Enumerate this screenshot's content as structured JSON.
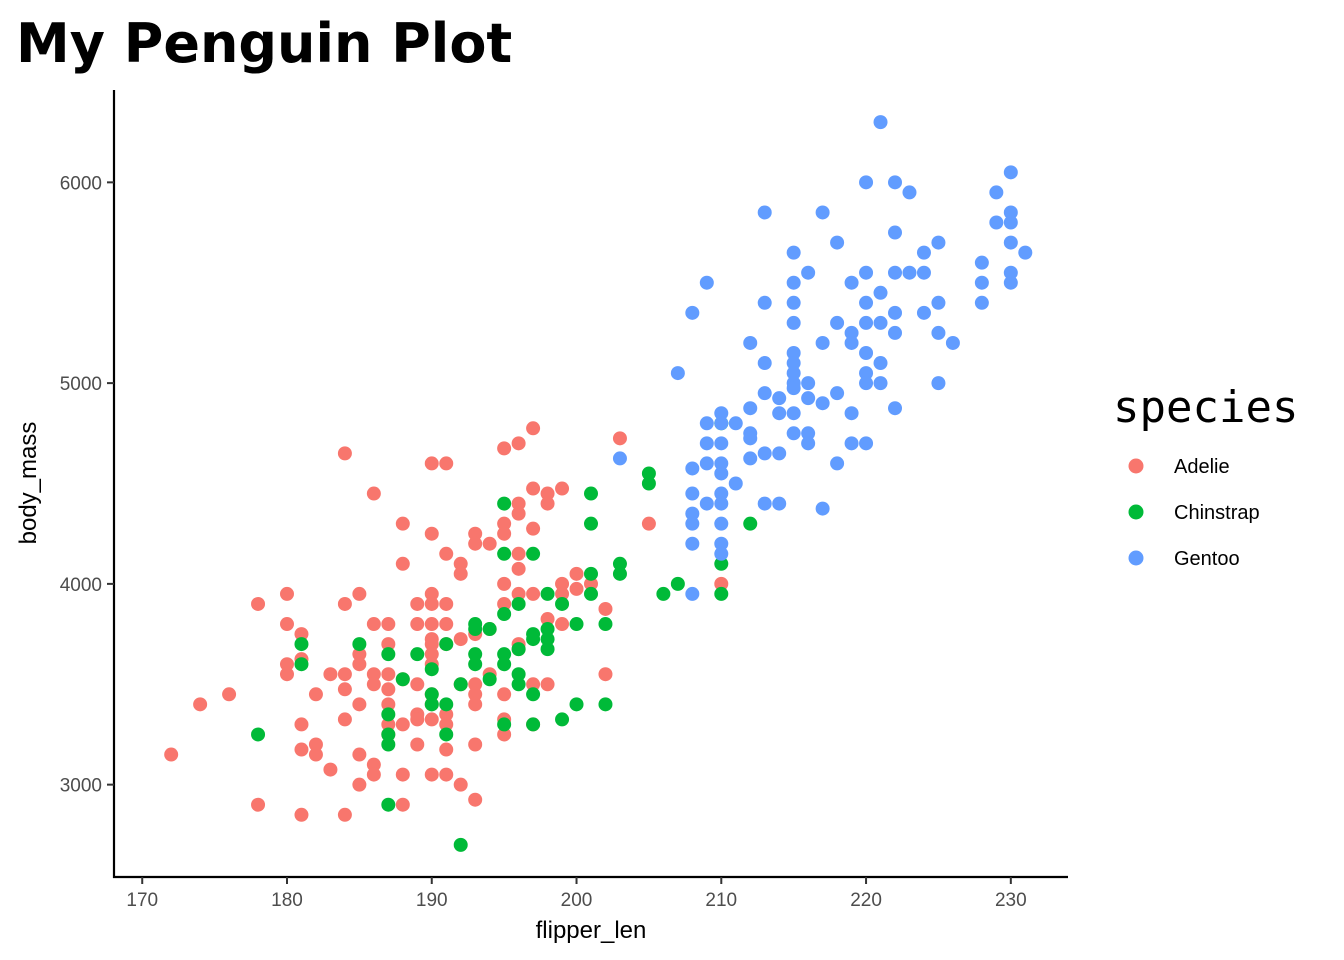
{
  "chart_data": {
    "type": "scatter",
    "title": "My Penguin Plot",
    "xlabel": "flipper_len",
    "ylabel": "body_mass",
    "xlim": [
      168.05,
      233.95
    ],
    "ylim": [
      2540,
      6460
    ],
    "xticks": [
      170,
      180,
      190,
      200,
      210,
      220,
      230
    ],
    "yticks": [
      3000,
      4000,
      5000,
      6000
    ],
    "grid": false,
    "legend": {
      "title": "species",
      "position": "right"
    },
    "series": [
      {
        "name": "Adelie",
        "color": "#F8766D",
        "points": [
          [
            172,
            3150
          ],
          [
            174,
            3400
          ],
          [
            176,
            3450
          ],
          [
            178,
            3900
          ],
          [
            178,
            2900
          ],
          [
            180,
            3950
          ],
          [
            180,
            3800
          ],
          [
            180,
            3600
          ],
          [
            180,
            3550
          ],
          [
            181,
            3750
          ],
          [
            181,
            3625
          ],
          [
            181,
            3300
          ],
          [
            181,
            3175
          ],
          [
            181,
            2850
          ],
          [
            182,
            3450
          ],
          [
            182,
            3200
          ],
          [
            182,
            3150
          ],
          [
            183,
            3550
          ],
          [
            183,
            3075
          ],
          [
            184,
            4650
          ],
          [
            184,
            3900
          ],
          [
            184,
            3550
          ],
          [
            184,
            3475
          ],
          [
            184,
            3325
          ],
          [
            184,
            2850
          ],
          [
            185,
            3950
          ],
          [
            185,
            3650
          ],
          [
            185,
            3600
          ],
          [
            185,
            3400
          ],
          [
            185,
            3150
          ],
          [
            185,
            3000
          ],
          [
            186,
            4450
          ],
          [
            186,
            3800
          ],
          [
            186,
            3550
          ],
          [
            186,
            3500
          ],
          [
            186,
            3100
          ],
          [
            186,
            3050
          ],
          [
            187,
            3800
          ],
          [
            187,
            3700
          ],
          [
            187,
            3550
          ],
          [
            187,
            3475
          ],
          [
            187,
            3400
          ],
          [
            187,
            3300
          ],
          [
            187,
            3250
          ],
          [
            188,
            4300
          ],
          [
            188,
            4100
          ],
          [
            188,
            3525
          ],
          [
            188,
            3300
          ],
          [
            188,
            3050
          ],
          [
            188,
            2900
          ],
          [
            189,
            3900
          ],
          [
            189,
            3800
          ],
          [
            189,
            3500
          ],
          [
            189,
            3350
          ],
          [
            189,
            3325
          ],
          [
            189,
            3200
          ],
          [
            190,
            4600
          ],
          [
            190,
            4250
          ],
          [
            190,
            3950
          ],
          [
            190,
            3900
          ],
          [
            190,
            3800
          ],
          [
            190,
            3725
          ],
          [
            190,
            3700
          ],
          [
            190,
            3650
          ],
          [
            190,
            3600
          ],
          [
            190,
            3450
          ],
          [
            190,
            3400
          ],
          [
            190,
            3325
          ],
          [
            190,
            3050
          ],
          [
            191,
            4600
          ],
          [
            191,
            4150
          ],
          [
            191,
            3900
          ],
          [
            191,
            3800
          ],
          [
            191,
            3700
          ],
          [
            191,
            3350
          ],
          [
            191,
            3300
          ],
          [
            191,
            3175
          ],
          [
            191,
            3050
          ],
          [
            192,
            4100
          ],
          [
            192,
            4050
          ],
          [
            192,
            3725
          ],
          [
            192,
            3500
          ],
          [
            192,
            3000
          ],
          [
            193,
            4250
          ],
          [
            193,
            4200
          ],
          [
            193,
            3750
          ],
          [
            193,
            3500
          ],
          [
            193,
            3450
          ],
          [
            193,
            3400
          ],
          [
            193,
            3200
          ],
          [
            193,
            2925
          ],
          [
            194,
            4200
          ],
          [
            194,
            3775
          ],
          [
            194,
            3550
          ],
          [
            195,
            4675
          ],
          [
            195,
            4300
          ],
          [
            195,
            4250
          ],
          [
            195,
            4000
          ],
          [
            195,
            3900
          ],
          [
            195,
            3450
          ],
          [
            195,
            3325
          ],
          [
            195,
            3250
          ],
          [
            196,
            4700
          ],
          [
            196,
            4400
          ],
          [
            196,
            4350
          ],
          [
            196,
            4150
          ],
          [
            196,
            4075
          ],
          [
            196,
            3950
          ],
          [
            196,
            3700
          ],
          [
            196,
            3675
          ],
          [
            197,
            4775
          ],
          [
            197,
            4475
          ],
          [
            197,
            4275
          ],
          [
            197,
            3950
          ],
          [
            197,
            3500
          ],
          [
            197,
            3300
          ],
          [
            198,
            4450
          ],
          [
            198,
            4400
          ],
          [
            198,
            3825
          ],
          [
            198,
            3500
          ],
          [
            199,
            4475
          ],
          [
            199,
            4000
          ],
          [
            199,
            3950
          ],
          [
            199,
            3800
          ],
          [
            200,
            4050
          ],
          [
            200,
            3975
          ],
          [
            201,
            4000
          ],
          [
            202,
            3875
          ],
          [
            202,
            3550
          ],
          [
            203,
            4725
          ],
          [
            205,
            4300
          ],
          [
            210,
            4000
          ]
        ]
      },
      {
        "name": "Chinstrap",
        "color": "#00BA38",
        "points": [
          [
            178,
            3250
          ],
          [
            181,
            3700
          ],
          [
            181,
            3600
          ],
          [
            185,
            3700
          ],
          [
            187,
            3650
          ],
          [
            187,
            3350
          ],
          [
            187,
            3250
          ],
          [
            187,
            3200
          ],
          [
            187,
            2900
          ],
          [
            188,
            3525
          ],
          [
            189,
            3650
          ],
          [
            190,
            3575
          ],
          [
            190,
            3450
          ],
          [
            190,
            3400
          ],
          [
            191,
            3700
          ],
          [
            191,
            3400
          ],
          [
            191,
            3250
          ],
          [
            192,
            3500
          ],
          [
            192,
            2700
          ],
          [
            193,
            3800
          ],
          [
            193,
            3775
          ],
          [
            193,
            3650
          ],
          [
            193,
            3600
          ],
          [
            194,
            3775
          ],
          [
            194,
            3525
          ],
          [
            195,
            4400
          ],
          [
            195,
            4150
          ],
          [
            195,
            3850
          ],
          [
            195,
            3650
          ],
          [
            195,
            3600
          ],
          [
            195,
            3300
          ],
          [
            196,
            3900
          ],
          [
            196,
            3675
          ],
          [
            196,
            3550
          ],
          [
            196,
            3500
          ],
          [
            197,
            4150
          ],
          [
            197,
            3750
          ],
          [
            197,
            3725
          ],
          [
            197,
            3450
          ],
          [
            197,
            3300
          ],
          [
            198,
            3950
          ],
          [
            198,
            3775
          ],
          [
            198,
            3725
          ],
          [
            198,
            3675
          ],
          [
            199,
            3900
          ],
          [
            199,
            3325
          ],
          [
            200,
            3800
          ],
          [
            200,
            3400
          ],
          [
            201,
            4450
          ],
          [
            201,
            4300
          ],
          [
            201,
            4050
          ],
          [
            201,
            3950
          ],
          [
            202,
            3800
          ],
          [
            202,
            3400
          ],
          [
            203,
            4100
          ],
          [
            203,
            4050
          ],
          [
            205,
            4550
          ],
          [
            205,
            4500
          ],
          [
            206,
            3950
          ],
          [
            207,
            4000
          ],
          [
            210,
            4800
          ],
          [
            210,
            4100
          ],
          [
            210,
            3950
          ],
          [
            212,
            4300
          ]
        ]
      },
      {
        "name": "Gentoo",
        "color": "#619CFF",
        "points": [
          [
            203,
            4625
          ],
          [
            207,
            5050
          ],
          [
            208,
            5350
          ],
          [
            208,
            4575
          ],
          [
            208,
            4450
          ],
          [
            208,
            4350
          ],
          [
            208,
            4300
          ],
          [
            208,
            4200
          ],
          [
            208,
            3950
          ],
          [
            209,
            5500
          ],
          [
            209,
            4800
          ],
          [
            209,
            4700
          ],
          [
            209,
            4600
          ],
          [
            209,
            4400
          ],
          [
            210,
            4850
          ],
          [
            210,
            4800
          ],
          [
            210,
            4700
          ],
          [
            210,
            4600
          ],
          [
            210,
            4550
          ],
          [
            210,
            4450
          ],
          [
            210,
            4400
          ],
          [
            210,
            4300
          ],
          [
            210,
            4200
          ],
          [
            210,
            4150
          ],
          [
            211,
            4800
          ],
          [
            211,
            4500
          ],
          [
            212,
            5200
          ],
          [
            212,
            4875
          ],
          [
            212,
            4750
          ],
          [
            212,
            4725
          ],
          [
            212,
            4625
          ],
          [
            213,
            5850
          ],
          [
            213,
            5400
          ],
          [
            213,
            5100
          ],
          [
            213,
            4950
          ],
          [
            213,
            4650
          ],
          [
            213,
            4400
          ],
          [
            214,
            4925
          ],
          [
            214,
            4850
          ],
          [
            214,
            4650
          ],
          [
            214,
            4400
          ],
          [
            215,
            5650
          ],
          [
            215,
            5500
          ],
          [
            215,
            5400
          ],
          [
            215,
            5300
          ],
          [
            215,
            5150
          ],
          [
            215,
            5100
          ],
          [
            215,
            5050
          ],
          [
            215,
            5000
          ],
          [
            215,
            4975
          ],
          [
            215,
            4850
          ],
          [
            215,
            4750
          ],
          [
            216,
            5550
          ],
          [
            216,
            5000
          ],
          [
            216,
            4925
          ],
          [
            216,
            4750
          ],
          [
            216,
            4700
          ],
          [
            217,
            5850
          ],
          [
            217,
            5200
          ],
          [
            217,
            4900
          ],
          [
            217,
            4375
          ],
          [
            218,
            5700
          ],
          [
            218,
            5300
          ],
          [
            218,
            4950
          ],
          [
            218,
            4600
          ],
          [
            219,
            5500
          ],
          [
            219,
            5250
          ],
          [
            219,
            5200
          ],
          [
            219,
            4850
          ],
          [
            219,
            4700
          ],
          [
            220,
            6000
          ],
          [
            220,
            5550
          ],
          [
            220,
            5400
          ],
          [
            220,
            5300
          ],
          [
            220,
            5150
          ],
          [
            220,
            5050
          ],
          [
            220,
            5000
          ],
          [
            220,
            4700
          ],
          [
            221,
            6300
          ],
          [
            221,
            5450
          ],
          [
            221,
            5300
          ],
          [
            221,
            5100
          ],
          [
            221,
            5000
          ],
          [
            222,
            6000
          ],
          [
            222,
            5750
          ],
          [
            222,
            5550
          ],
          [
            222,
            5350
          ],
          [
            222,
            5250
          ],
          [
            222,
            4875
          ],
          [
            223,
            5950
          ],
          [
            223,
            5550
          ],
          [
            224,
            5650
          ],
          [
            224,
            5550
          ],
          [
            224,
            5350
          ],
          [
            225,
            5700
          ],
          [
            225,
            5400
          ],
          [
            225,
            5250
          ],
          [
            225,
            5000
          ],
          [
            226,
            5200
          ],
          [
            228,
            5600
          ],
          [
            228,
            5500
          ],
          [
            228,
            5400
          ],
          [
            229,
            5950
          ],
          [
            229,
            5800
          ],
          [
            230,
            6050
          ],
          [
            230,
            5850
          ],
          [
            230,
            5800
          ],
          [
            230,
            5700
          ],
          [
            230,
            5550
          ],
          [
            230,
            5500
          ],
          [
            231,
            5650
          ]
        ]
      }
    ]
  }
}
